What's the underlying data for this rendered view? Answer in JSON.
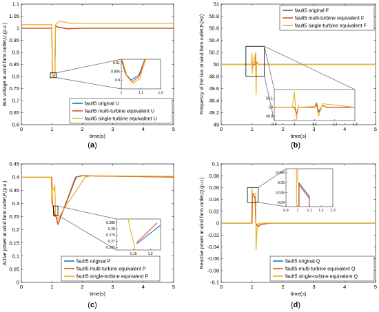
{
  "colors": {
    "original": "#1f6fb5",
    "multi": "#d95319",
    "single": "#edb120",
    "axis": "#000000",
    "frame": "#7f7f7f",
    "background": "#ffffff"
  },
  "chart_data": [
    {
      "type": "line",
      "panel_label": "(a)",
      "xlabel": "time(s)",
      "ylabel": "Bus voltage at wind farm outlet,U,(p.u.)",
      "xlim": [
        0,
        5
      ],
      "ylim": [
        0.6,
        1.1
      ],
      "xticks": [
        0,
        1,
        2,
        3,
        4,
        5
      ],
      "yticks": [
        0.6,
        0.65,
        0.7,
        0.75,
        0.8,
        0.85,
        0.9,
        0.95,
        1,
        1.05,
        1.1
      ],
      "ytick_labels": [
        "0.6",
        "0.65",
        "0.7",
        "0.75",
        "0.8",
        "0.85",
        "0.9",
        "0.95",
        "1",
        "1.05",
        "1.1"
      ],
      "legend_position": "bottom-right",
      "series": [
        {
          "name": "fault5 original U",
          "color_key": "original",
          "x": [
            0,
            1.0,
            1.02,
            1.05,
            1.1,
            1.12,
            1.2,
            1.5,
            2.0,
            5
          ],
          "y": [
            1.0,
            1.0,
            0.81,
            0.8,
            0.805,
            1.01,
            1.005,
            0.998,
            1.0,
            1.0
          ]
        },
        {
          "name": "fault5 multi-turbine equivalent U",
          "color_key": "multi",
          "x": [
            0,
            1.0,
            1.02,
            1.05,
            1.1,
            1.12,
            1.2,
            1.5,
            2.0,
            5
          ],
          "y": [
            1.0,
            1.0,
            0.81,
            0.8,
            0.805,
            1.01,
            1.005,
            0.998,
            1.0,
            1.0
          ]
        },
        {
          "name": "fault5 single-turbine equivalent U",
          "color_key": "single",
          "x": [
            0,
            1.0,
            1.02,
            1.05,
            1.1,
            1.12,
            1.25,
            1.6,
            2.0,
            5
          ],
          "y": [
            1.015,
            1.015,
            0.81,
            0.802,
            0.808,
            1.015,
            1.03,
            1.02,
            1.02,
            1.02
          ]
        }
      ],
      "inset": {
        "xlim": [
          1,
          1.2
        ],
        "ylim": [
          0.795,
          0.812
        ],
        "xticks": [
          1,
          1.1,
          1.2
        ],
        "yticks": [
          0.8,
          0.805,
          0.81
        ],
        "ytick_labels": [
          "0.8",
          "0.805",
          "0.81"
        ],
        "zoom_box": {
          "x": [
            0.95,
            1.15
          ],
          "y": [
            0.795,
            0.815
          ]
        },
        "series": [
          {
            "color_key": "original",
            "x": [
              1.0,
              1.02,
              1.05,
              1.09,
              1.1,
              1.12
            ],
            "y": [
              0.812,
              0.804,
              0.8,
              0.803,
              0.806,
              0.812
            ]
          },
          {
            "color_key": "multi",
            "x": [
              1.0,
              1.025,
              1.055,
              1.09,
              1.1,
              1.12
            ],
            "y": [
              0.812,
              0.803,
              0.799,
              0.802,
              0.805,
              0.812
            ]
          },
          {
            "color_key": "single",
            "x": [
              1.005,
              1.03,
              1.06,
              1.095,
              1.105,
              1.125
            ],
            "y": [
              0.812,
              0.802,
              0.798,
              0.801,
              0.805,
              0.812
            ]
          }
        ]
      }
    },
    {
      "type": "line",
      "panel_label": "(b)",
      "xlabel": "time(s)",
      "ylabel": "Frequency of the bus at wind farm outlet,F,(Hz)",
      "xlim": [
        0,
        5
      ],
      "ylim": [
        49,
        51
      ],
      "xticks": [
        0,
        1,
        2,
        3,
        4,
        5
      ],
      "yticks": [
        49,
        49.2,
        49.4,
        49.6,
        49.8,
        50,
        50.2,
        50.4,
        50.6,
        50.8,
        51
      ],
      "ytick_labels": [
        "49",
        "49.2",
        "49.4",
        "49.6",
        "49.8",
        "50",
        "50.2",
        "50.4",
        "50.6",
        "50.8",
        "51"
      ],
      "legend_position": "top-right",
      "series": [
        {
          "name": "fault5 original F",
          "color_key": "original",
          "x": [
            0,
            1.0,
            1.01,
            1.02,
            1.1,
            1.11,
            1.13,
            1.15,
            1.2,
            1.3,
            5
          ],
          "y": [
            50,
            50,
            49.9,
            50,
            50,
            50.1,
            49.85,
            50.03,
            50,
            50,
            50
          ]
        },
        {
          "name": "fault5 multi-turbine equivalent F",
          "color_key": "multi",
          "x": [
            0,
            1.0,
            1.01,
            1.02,
            1.1,
            1.11,
            1.13,
            1.15,
            1.2,
            1.3,
            5
          ],
          "y": [
            50,
            50,
            49.92,
            50,
            50,
            50.12,
            49.8,
            50.03,
            50,
            50,
            50
          ]
        },
        {
          "name": "fault5 single-turbine equivalent F",
          "color_key": "single",
          "x": [
            0,
            0.98,
            1.0,
            1.01,
            1.02,
            1.12,
            1.13,
            1.15,
            1.2,
            1.3,
            5
          ],
          "y": [
            50,
            50,
            50.18,
            49.85,
            50,
            50.2,
            49.5,
            50.05,
            50,
            50,
            50
          ]
        }
      ],
      "inset": {
        "xlim": [
          0.9,
          1.3
        ],
        "ylim": [
          49.85,
          50.2
        ],
        "xticks": [
          0.9,
          1,
          1.1,
          1.2,
          1.3
        ],
        "yticks": [
          49.9,
          50,
          50.1
        ],
        "ytick_labels": [
          "49.9",
          "50",
          "50.1"
        ],
        "zoom_box": {
          "x": [
            0.8,
            1.4
          ],
          "y": [
            49.8,
            50.3
          ]
        },
        "series": [
          {
            "color_key": "original",
            "x": [
              0.9,
              1.0,
              1.01,
              1.02,
              1.1,
              1.11,
              1.12,
              1.14,
              1.16,
              1.3
            ],
            "y": [
              50,
              50,
              49.92,
              50,
              50,
              50.03,
              49.95,
              50.02,
              50,
              50
            ]
          },
          {
            "color_key": "multi",
            "x": [
              0.9,
              1.0,
              1.01,
              1.02,
              1.1,
              1.11,
              1.12,
              1.14,
              1.16,
              1.3
            ],
            "y": [
              50,
              50,
              49.93,
              50,
              50,
              50.05,
              49.94,
              50.02,
              50,
              50
            ]
          },
          {
            "color_key": "single",
            "x": [
              0.9,
              0.99,
              1.0,
              1.01,
              1.02,
              1.02,
              1.11,
              1.12,
              1.14,
              1.3
            ],
            "y": [
              50,
              50,
              50.17,
              49.86,
              50.02,
              50,
              50.01,
              49.9,
              50.04,
              50
            ]
          }
        ]
      }
    },
    {
      "type": "line",
      "panel_label": "(c)",
      "xlabel": "time(s)",
      "ylabel": "Active power at wind farm outlet,P,(p.u.)",
      "xlim": [
        0,
        5
      ],
      "ylim": [
        0,
        0.45
      ],
      "xticks": [
        0,
        1,
        2,
        3,
        4,
        5
      ],
      "yticks": [
        0,
        0.05,
        0.1,
        0.15,
        0.2,
        0.25,
        0.3,
        0.35,
        0.4,
        0.45
      ],
      "ytick_labels": [
        "0",
        "0.05",
        "0.1",
        "0.15",
        "0.2",
        "0.25",
        "0.3",
        "0.35",
        "0.4",
        "0.45"
      ],
      "legend_position": "bottom-left",
      "series": [
        {
          "name": "fault5 original P",
          "color_key": "original",
          "x": [
            0,
            1.0,
            1.02,
            1.1,
            1.12,
            1.2,
            1.8,
            2.0,
            5
          ],
          "y": [
            0.4,
            0.4,
            0.3,
            0.25,
            0.26,
            0.22,
            0.4,
            0.405,
            0.4
          ]
        },
        {
          "name": "fault5 multi-turbine equivalent P",
          "color_key": "multi",
          "x": [
            0,
            1.0,
            1.02,
            1.1,
            1.12,
            1.2,
            1.78,
            1.95,
            5
          ],
          "y": [
            0.4,
            0.4,
            0.3,
            0.25,
            0.26,
            0.22,
            0.4,
            0.405,
            0.4
          ]
        },
        {
          "name": "fault5 single-turbine equivalent P",
          "color_key": "single",
          "x": [
            0,
            0.98,
            1.0,
            1.02,
            1.08,
            1.1,
            1.12,
            1.2,
            1.4,
            2.1,
            2.3,
            5
          ],
          "y": [
            0.4,
            0.4,
            0.3,
            0.36,
            0.35,
            0.37,
            0.26,
            0.24,
            0.28,
            0.4,
            0.405,
            0.403
          ]
        }
      ],
      "inset": {
        "xlim": [
          1.1,
          1.23
        ],
        "ylim": [
          0.263,
          0.288
        ],
        "xticks": [
          1.15,
          1.2
        ],
        "yticks": [
          0.265,
          0.27,
          0.275,
          0.28,
          0.285
        ],
        "ytick_labels": [
          "0.265",
          "0.27",
          "0.275",
          "0.28",
          "0.285"
        ],
        "zoom_box": {
          "x": [
            1.05,
            1.2
          ],
          "y": [
            0.255,
            0.29
          ]
        },
        "series": [
          {
            "color_key": "original",
            "x": [
              1.16,
              1.23
            ],
            "y": [
              0.268,
              0.283
            ]
          },
          {
            "color_key": "multi",
            "x": [
              1.16,
              1.22
            ],
            "y": [
              0.269,
              0.285
            ]
          },
          {
            "color_key": "single",
            "x": [
              1.135,
              1.14,
              1.15,
              1.155
            ],
            "y": [
              0.288,
              0.28,
              0.27,
              0.263
            ]
          }
        ]
      }
    },
    {
      "type": "line",
      "panel_label": "(d)",
      "xlabel": "time(s)",
      "ylabel": "Reactive power at wind farm outlet,Q,(p.u.)",
      "xlim": [
        0,
        5
      ],
      "ylim": [
        -0.1,
        0.1
      ],
      "xticks": [
        0,
        1,
        2,
        3,
        4,
        5
      ],
      "yticks": [
        -0.1,
        -0.08,
        -0.06,
        -0.04,
        -0.02,
        0,
        0.02,
        0.04,
        0.06,
        0.08,
        0.1
      ],
      "ytick_labels": [
        "-0.1",
        "-0.08",
        "-0.06",
        "-0.04",
        "-0.02",
        "0",
        "0.02",
        "0.04",
        "0.06",
        "0.08",
        "0.1"
      ],
      "legend_position": "bottom-right",
      "series": [
        {
          "name": "fault5 original Q",
          "color_key": "original",
          "x": [
            0,
            1.0,
            1.01,
            1.1,
            1.12,
            1.18,
            1.3,
            1.6,
            5
          ],
          "y": [
            0,
            0,
            0.05,
            0.043,
            0,
            -0.005,
            -0.002,
            0,
            0
          ]
        },
        {
          "name": "fault5 multi-turbine equivalent Q",
          "color_key": "multi",
          "x": [
            0,
            1.0,
            1.01,
            1.1,
            1.12,
            1.18,
            1.3,
            1.6,
            5
          ],
          "y": [
            0,
            0,
            0.05,
            0.042,
            0,
            -0.006,
            -0.002,
            0,
            0
          ]
        },
        {
          "name": "fault5 single-turbine equivalent Q",
          "color_key": "single",
          "x": [
            0,
            0.98,
            1.0,
            1.01,
            1.12,
            1.13,
            1.16,
            1.2,
            1.3,
            5
          ],
          "y": [
            0,
            0,
            0.058,
            0.05,
            0.05,
            -0.045,
            -0.01,
            0,
            0,
            0
          ]
        }
      ],
      "inset": {
        "xlim": [
          0.9,
          1.3
        ],
        "ylim": [
          0.038,
          0.057
        ],
        "xticks": [
          0.9,
          1,
          1.1,
          1.2,
          1.3
        ],
        "yticks": [
          0.04,
          0.045,
          0.05,
          0.055
        ],
        "ytick_labels": [
          "0.04",
          "0.045",
          "0.05",
          "0.055"
        ],
        "zoom_box": {
          "x": [
            0.85,
            1.2
          ],
          "y": [
            0.035,
            0.06
          ]
        },
        "series": [
          {
            "color_key": "original",
            "x": [
              1.01,
              1.01,
              1.1,
              1.1
            ],
            "y": [
              0.038,
              0.05,
              0.043,
              0.038
            ]
          },
          {
            "color_key": "multi",
            "x": [
              1.012,
              1.012,
              1.1,
              1.1
            ],
            "y": [
              0.038,
              0.049,
              0.042,
              0.038
            ]
          },
          {
            "color_key": "single",
            "x": [
              0.99,
              0.99,
              1.0,
              1.0,
              1.01
            ],
            "y": [
              0.038,
              0.057,
              0.057,
              0.05,
              0.05
            ]
          }
        ]
      }
    }
  ]
}
